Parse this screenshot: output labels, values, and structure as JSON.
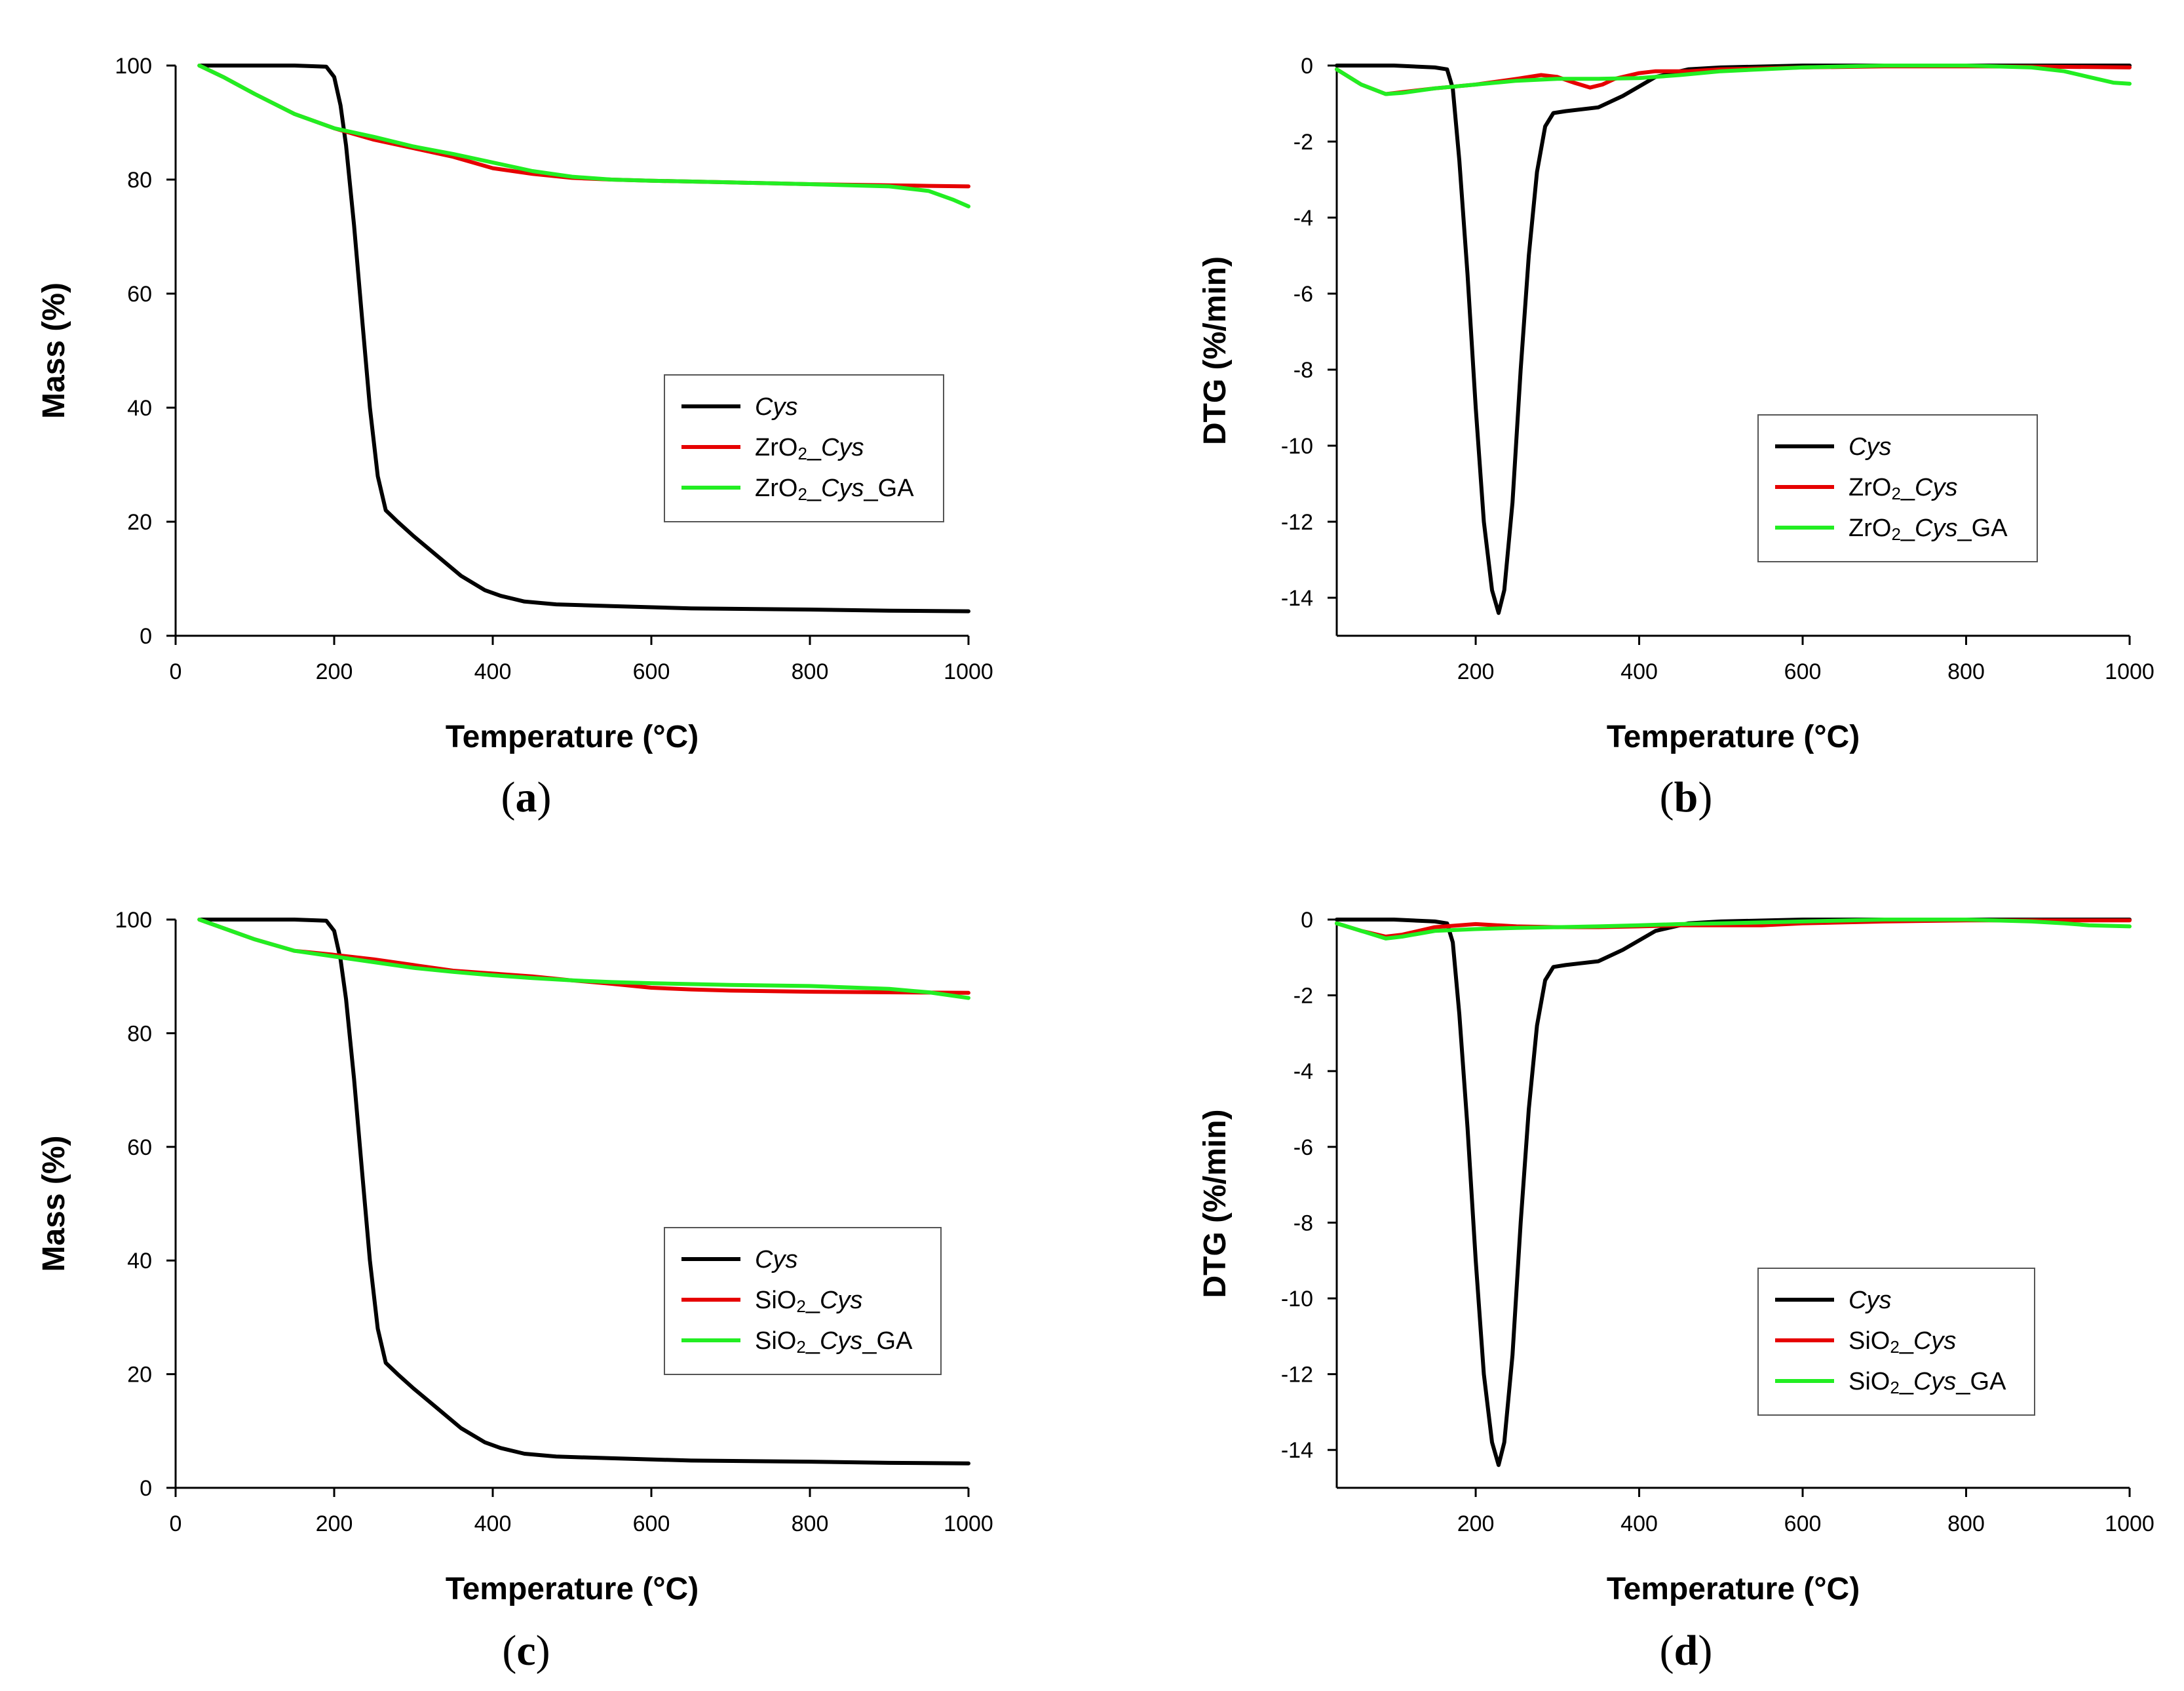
{
  "colors": {
    "Cys": "#000000",
    "Oxide_Cys": "#e60000",
    "Oxide_Cys_GA": "#22ee22"
  },
  "chart_data": [
    {
      "panel": "a",
      "panel_label": "a",
      "type": "line",
      "xlabel": "Temperature (°C)",
      "ylabel": "Mass (%)",
      "xlim": [
        0,
        1000
      ],
      "ylim": [
        0,
        100
      ],
      "xticks": [
        0,
        200,
        400,
        600,
        800,
        1000
      ],
      "yticks": [
        0,
        20,
        40,
        60,
        80,
        100
      ],
      "legend_position": "center-right",
      "series": [
        {
          "name": "Cys",
          "parts": [
            {
              "t": "Cys",
              "i": true
            }
          ],
          "color": "#000000",
          "x": [
            30,
            100,
            150,
            190,
            200,
            208,
            215,
            225,
            235,
            245,
            255,
            265,
            280,
            300,
            330,
            360,
            390,
            410,
            440,
            480,
            550,
            650,
            800,
            900,
            1000
          ],
          "y": [
            100,
            100,
            100,
            99.8,
            98,
            93,
            86,
            72,
            56,
            40,
            28,
            22,
            20,
            17.5,
            14,
            10.5,
            8,
            7,
            6,
            5.5,
            5.2,
            4.8,
            4.6,
            4.4,
            4.3
          ]
        },
        {
          "name": "ZrO2_Cys",
          "parts": [
            {
              "t": "ZrO"
            },
            {
              "t": "2",
              "s": true
            },
            {
              "t": "_"
            },
            {
              "t": "Cys",
              "i": true
            }
          ],
          "color": "#e60000",
          "x": [
            30,
            60,
            100,
            150,
            200,
            250,
            300,
            350,
            400,
            450,
            500,
            550,
            600,
            700,
            800,
            900,
            950,
            1000
          ],
          "y": [
            100,
            98,
            95,
            91.5,
            89,
            87,
            85.5,
            84,
            82,
            81,
            80.3,
            80,
            79.8,
            79.5,
            79.2,
            79,
            78.9,
            78.8
          ]
        },
        {
          "name": "ZrO2_Cys_GA",
          "parts": [
            {
              "t": "ZrO"
            },
            {
              "t": "2",
              "s": true
            },
            {
              "t": "_"
            },
            {
              "t": "Cys",
              "i": true
            },
            {
              "t": "_GA"
            }
          ],
          "color": "#22ee22",
          "x": [
            30,
            60,
            100,
            150,
            200,
            250,
            300,
            350,
            400,
            450,
            500,
            550,
            600,
            700,
            800,
            900,
            950,
            980,
            1000
          ],
          "y": [
            100,
            98,
            95,
            91.5,
            89,
            87.5,
            85.8,
            84.5,
            83,
            81.5,
            80.5,
            80,
            79.8,
            79.5,
            79.2,
            78.8,
            78,
            76.5,
            75.3
          ]
        }
      ]
    },
    {
      "panel": "b",
      "panel_label": "b",
      "type": "line",
      "xlabel": "Temperature (°C)",
      "ylabel": "DTG (%/min)",
      "xlim": [
        30,
        1000
      ],
      "ylim": [
        -15,
        0
      ],
      "xticks": [
        200,
        400,
        600,
        800,
        1000
      ],
      "yticks": [
        0,
        -2,
        -4,
        -6,
        -8,
        -10,
        -12,
        -14
      ],
      "legend_position": "center-right",
      "series": [
        {
          "name": "Cys",
          "parts": [
            {
              "t": "Cys",
              "i": true
            }
          ],
          "color": "#000000",
          "x": [
            30,
            100,
            150,
            165,
            172,
            180,
            190,
            200,
            210,
            220,
            228,
            235,
            245,
            255,
            265,
            275,
            285,
            295,
            310,
            350,
            380,
            420,
            460,
            500,
            600,
            800,
            1000
          ],
          "y": [
            0,
            0,
            -0.05,
            -0.1,
            -0.6,
            -2.5,
            -5.5,
            -9,
            -12,
            -13.8,
            -14.4,
            -13.8,
            -11.5,
            -8,
            -5,
            -2.8,
            -1.6,
            -1.25,
            -1.2,
            -1.1,
            -0.8,
            -0.3,
            -0.1,
            -0.05,
            0,
            0,
            0
          ]
        },
        {
          "name": "ZrO2_Cys",
          "parts": [
            {
              "t": "ZrO"
            },
            {
              "t": "2",
              "s": true
            },
            {
              "t": "_"
            },
            {
              "t": "Cys",
              "i": true
            }
          ],
          "color": "#e60000",
          "x": [
            30,
            60,
            90,
            110,
            150,
            200,
            250,
            280,
            300,
            320,
            340,
            355,
            370,
            400,
            420,
            460,
            500,
            600,
            700,
            800,
            900,
            1000
          ],
          "y": [
            -0.1,
            -0.5,
            -0.75,
            -0.7,
            -0.6,
            -0.5,
            -0.35,
            -0.25,
            -0.3,
            -0.45,
            -0.58,
            -0.5,
            -0.35,
            -0.2,
            -0.15,
            -0.15,
            -0.1,
            -0.05,
            -0.02,
            -0.02,
            -0.03,
            -0.05
          ]
        },
        {
          "name": "ZrO2_Cys_GA",
          "parts": [
            {
              "t": "ZrO"
            },
            {
              "t": "2",
              "s": true
            },
            {
              "t": "_"
            },
            {
              "t": "Cys",
              "i": true
            },
            {
              "t": "_GA"
            }
          ],
          "color": "#22ee22",
          "x": [
            30,
            60,
            90,
            110,
            150,
            200,
            250,
            300,
            350,
            400,
            450,
            500,
            600,
            700,
            800,
            880,
            920,
            950,
            980,
            1000
          ],
          "y": [
            -0.1,
            -0.5,
            -0.75,
            -0.72,
            -0.6,
            -0.5,
            -0.4,
            -0.35,
            -0.35,
            -0.33,
            -0.25,
            -0.15,
            -0.05,
            0,
            0,
            -0.05,
            -0.15,
            -0.3,
            -0.45,
            -0.48
          ]
        }
      ]
    },
    {
      "panel": "c",
      "panel_label": "c",
      "type": "line",
      "xlabel": "Temperature (°C)",
      "ylabel": "Mass (%)",
      "xlim": [
        0,
        1000
      ],
      "ylim": [
        0,
        100
      ],
      "xticks": [
        0,
        200,
        400,
        600,
        800,
        1000
      ],
      "yticks": [
        0,
        20,
        40,
        60,
        80,
        100
      ],
      "legend_position": "center-right",
      "series": [
        {
          "name": "Cys",
          "parts": [
            {
              "t": "Cys",
              "i": true
            }
          ],
          "color": "#000000",
          "x": [
            30,
            100,
            150,
            190,
            200,
            208,
            215,
            225,
            235,
            245,
            255,
            265,
            280,
            300,
            330,
            360,
            390,
            410,
            440,
            480,
            550,
            650,
            800,
            900,
            1000
          ],
          "y": [
            100,
            100,
            100,
            99.8,
            98,
            93,
            86,
            72,
            56,
            40,
            28,
            22,
            20,
            17.5,
            14,
            10.5,
            8,
            7,
            6,
            5.5,
            5.2,
            4.8,
            4.6,
            4.4,
            4.3
          ]
        },
        {
          "name": "SiO2_Cys",
          "parts": [
            {
              "t": "SiO"
            },
            {
              "t": "2",
              "s": true
            },
            {
              "t": "_"
            },
            {
              "t": "Cys",
              "i": true
            }
          ],
          "color": "#e60000",
          "x": [
            30,
            60,
            100,
            150,
            200,
            250,
            300,
            350,
            400,
            450,
            500,
            550,
            600,
            650,
            700,
            800,
            900,
            1000
          ],
          "y": [
            100,
            98.5,
            96.5,
            94.5,
            93.8,
            93,
            92,
            91,
            90.5,
            90,
            89.3,
            88.7,
            88,
            87.7,
            87.5,
            87.3,
            87.2,
            87.1
          ]
        },
        {
          "name": "SiO2_Cys_GA",
          "parts": [
            {
              "t": "SiO"
            },
            {
              "t": "2",
              "s": true
            },
            {
              "t": "_"
            },
            {
              "t": "Cys",
              "i": true
            },
            {
              "t": "_GA"
            }
          ],
          "color": "#22ee22",
          "x": [
            30,
            60,
            100,
            150,
            200,
            250,
            300,
            350,
            400,
            450,
            500,
            550,
            600,
            700,
            800,
            900,
            950,
            1000
          ],
          "y": [
            100,
            98.5,
            96.5,
            94.5,
            93.5,
            92.5,
            91.5,
            90.8,
            90.2,
            89.7,
            89.3,
            89,
            88.8,
            88.5,
            88.3,
            87.8,
            87.2,
            86.2
          ]
        }
      ]
    },
    {
      "panel": "d",
      "panel_label": "d",
      "type": "line",
      "xlabel": "Temperature (°C)",
      "ylabel": "DTG (%/min)",
      "xlim": [
        30,
        1000
      ],
      "ylim": [
        -15,
        0
      ],
      "xticks": [
        200,
        400,
        600,
        800,
        1000
      ],
      "yticks": [
        0,
        -2,
        -4,
        -6,
        -8,
        -10,
        -12,
        -14
      ],
      "legend_position": "center-right",
      "series": [
        {
          "name": "Cys",
          "parts": [
            {
              "t": "Cys",
              "i": true
            }
          ],
          "color": "#000000",
          "x": [
            30,
            100,
            150,
            165,
            172,
            180,
            190,
            200,
            210,
            220,
            228,
            235,
            245,
            255,
            265,
            275,
            285,
            295,
            310,
            350,
            380,
            420,
            460,
            500,
            600,
            800,
            1000
          ],
          "y": [
            0,
            0,
            -0.05,
            -0.1,
            -0.6,
            -2.5,
            -5.5,
            -9,
            -12,
            -13.8,
            -14.4,
            -13.8,
            -11.5,
            -8,
            -5,
            -2.8,
            -1.6,
            -1.25,
            -1.2,
            -1.1,
            -0.8,
            -0.3,
            -0.1,
            -0.05,
            0,
            0,
            0
          ]
        },
        {
          "name": "SiO2_Cys",
          "parts": [
            {
              "t": "SiO"
            },
            {
              "t": "2",
              "s": true
            },
            {
              "t": "_"
            },
            {
              "t": "Cys",
              "i": true
            }
          ],
          "color": "#e60000",
          "x": [
            30,
            60,
            90,
            110,
            150,
            200,
            250,
            300,
            350,
            400,
            450,
            500,
            550,
            600,
            700,
            800,
            900,
            1000
          ],
          "y": [
            -0.1,
            -0.3,
            -0.45,
            -0.4,
            -0.2,
            -0.12,
            -0.18,
            -0.2,
            -0.2,
            -0.18,
            -0.15,
            -0.15,
            -0.15,
            -0.1,
            -0.05,
            -0.02,
            -0.02,
            -0.02
          ]
        },
        {
          "name": "SiO2_Cys_GA",
          "parts": [
            {
              "t": "SiO"
            },
            {
              "t": "2",
              "s": true
            },
            {
              "t": "_"
            },
            {
              "t": "Cys",
              "i": true
            },
            {
              "t": "_GA"
            }
          ],
          "color": "#22ee22",
          "x": [
            30,
            60,
            90,
            110,
            150,
            200,
            250,
            300,
            350,
            400,
            450,
            500,
            600,
            700,
            800,
            880,
            920,
            950,
            1000
          ],
          "y": [
            -0.1,
            -0.3,
            -0.5,
            -0.45,
            -0.3,
            -0.25,
            -0.22,
            -0.2,
            -0.18,
            -0.15,
            -0.12,
            -0.1,
            -0.05,
            0,
            0,
            -0.05,
            -0.1,
            -0.15,
            -0.18
          ]
        }
      ]
    }
  ]
}
